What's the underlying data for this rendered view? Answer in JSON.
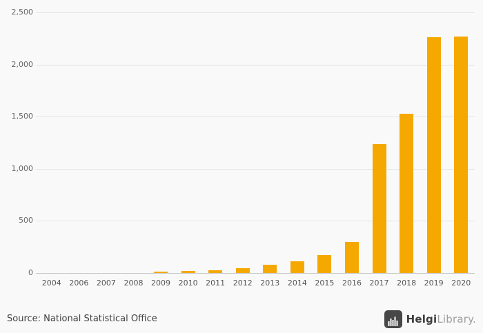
{
  "chart_data": {
    "type": "bar",
    "categories": [
      "2004",
      "2006",
      "2007",
      "2008",
      "2009",
      "2010",
      "2011",
      "2012",
      "2013",
      "2014",
      "2015",
      "2016",
      "2017",
      "2018",
      "2019",
      "2020"
    ],
    "values": [
      0,
      0,
      0,
      0,
      10,
      18,
      26,
      45,
      80,
      110,
      170,
      295,
      1240,
      1530,
      2260,
      2270
    ],
    "title": "",
    "xlabel": "",
    "ylabel": "",
    "ylim": [
      0,
      2500
    ],
    "yticks": [
      0,
      500,
      1000,
      1500,
      2000,
      2500
    ],
    "ytick_labels": [
      "0",
      "500",
      "1,000",
      "1,500",
      "2,000",
      "2,500"
    ],
    "grid": true,
    "legend": "none",
    "bar_color": "#F5A800"
  },
  "footer": {
    "source": "Source: National Statistical Office",
    "logo": {
      "name_bold": "Helgi",
      "name_light": "Library",
      "suffix": "."
    }
  },
  "colors": {
    "background": "#f9f9f9",
    "gridline": "#e4e4e4",
    "axis_line": "#c9c9c9",
    "tick_text": "#666666",
    "source_text": "#3f3f3f",
    "logo_square": "#474747",
    "logo_dark_text": "#3d3d3d",
    "logo_light_text": "#9e9e9e"
  }
}
